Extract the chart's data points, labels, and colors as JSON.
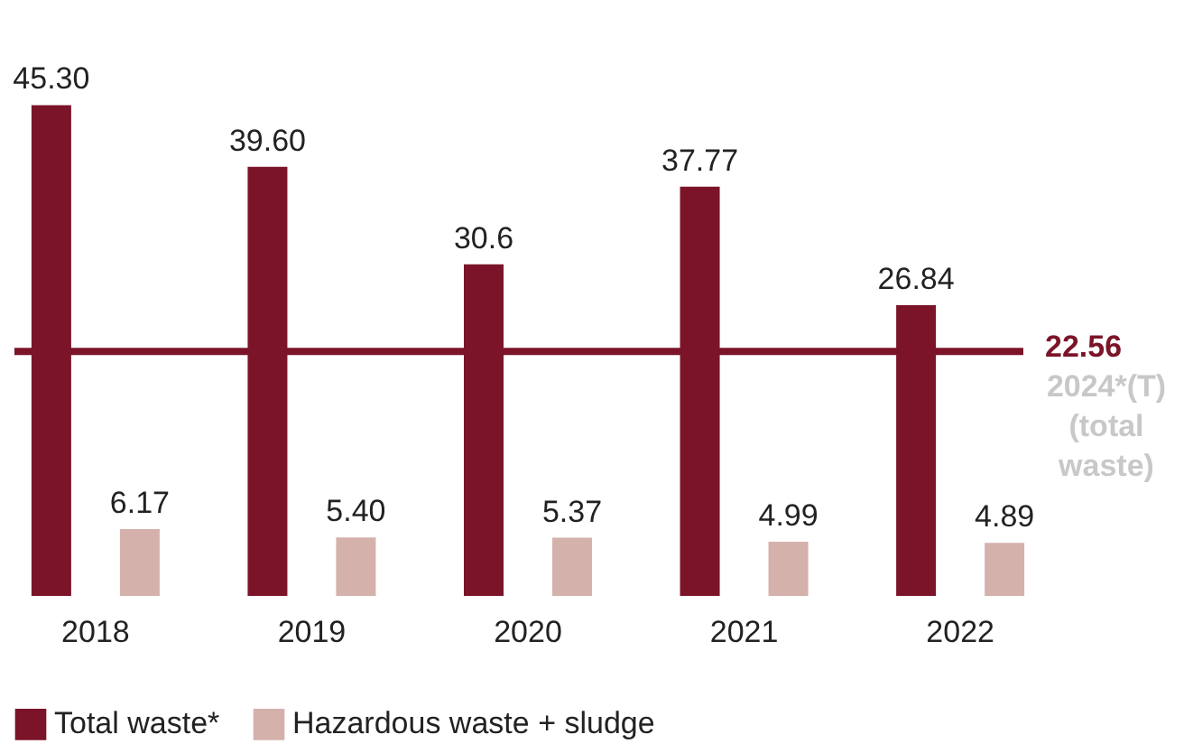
{
  "chart_data": {
    "type": "bar",
    "categories": [
      "2018",
      "2019",
      "2020",
      "2021",
      "2022"
    ],
    "series": [
      {
        "name": "Total waste*",
        "color": "#7b1428",
        "values": [
          45.3,
          39.6,
          30.6,
          37.77,
          26.84
        ],
        "value_labels": [
          "45.30",
          "39.60",
          "30.6",
          "37.77",
          "26.84"
        ]
      },
      {
        "name": "Hazardous waste + sludge",
        "color": "#d4b1ab",
        "values": [
          6.17,
          5.4,
          5.37,
          4.99,
          4.89
        ],
        "value_labels": [
          "6.17",
          "5.40",
          "5.37",
          "4.99",
          "4.89"
        ]
      }
    ],
    "ref_lines": [
      {
        "axis": "y",
        "value": 22.56,
        "label": "22.56 2024*(T) (total waste)",
        "color": "#7b1428"
      }
    ],
    "legend": "bottom left",
    "tick_labels": "x",
    "grid": false
  }
}
